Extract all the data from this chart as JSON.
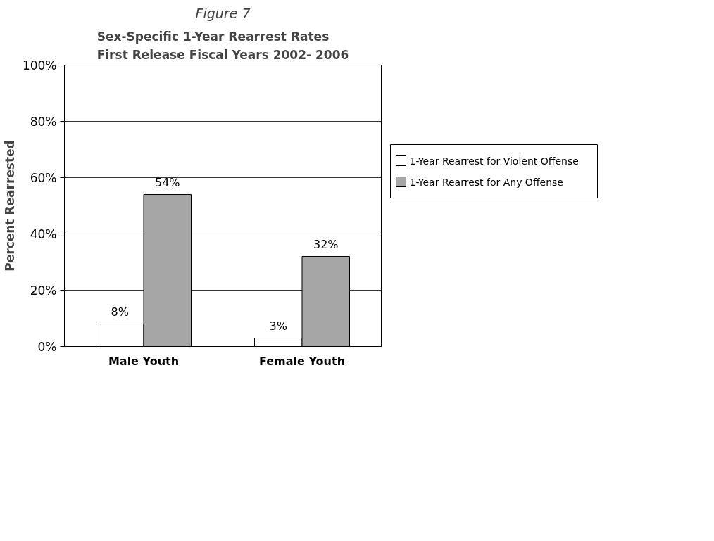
{
  "chart_data": {
    "type": "bar",
    "title": "Figure 7",
    "subtitle": "Sex-Specific 1-Year Rearrest Rates\nFirst Release Fiscal Years 2002- 2006",
    "ylabel": "Percent Rearrested",
    "categories": [
      "Male Youth",
      "Female Youth"
    ],
    "series": [
      {
        "name": "1-Year Rearrest for Violent Offense",
        "color": "#ffffff",
        "values": [
          8,
          3
        ],
        "value_labels": [
          "8%",
          "3%"
        ]
      },
      {
        "name": "1-Year Rearrest for Any Offense",
        "color": "#a6a6a6",
        "values": [
          54,
          32
        ],
        "value_labels": [
          "54%",
          "32%"
        ]
      }
    ],
    "ylim": [
      0,
      100
    ],
    "yticks": [
      {
        "value": 0,
        "label": "0%"
      },
      {
        "value": 20,
        "label": "20%"
      },
      {
        "value": 40,
        "label": "40%"
      },
      {
        "value": 60,
        "label": "60%"
      },
      {
        "value": 80,
        "label": "80%"
      },
      {
        "value": 100,
        "label": "100%"
      }
    ],
    "grid": "y",
    "legend": "right"
  }
}
